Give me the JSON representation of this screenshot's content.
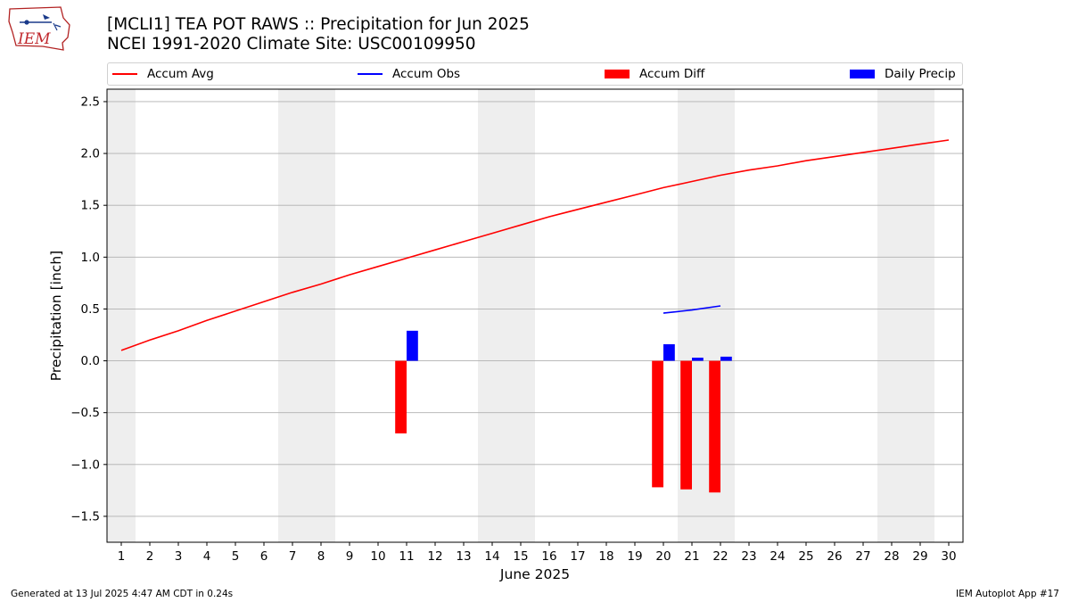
{
  "header": {
    "logo_text": "IEM",
    "title": "[MCLI1] TEA POT RAWS :: Precipitation for Jun 2025",
    "subtitle": "NCEI 1991-2020 Climate Site: USC00109950"
  },
  "legend": [
    {
      "label": "Accum Avg",
      "color": "#ff0000",
      "kind": "line"
    },
    {
      "label": "Accum Obs",
      "color": "#0000ff",
      "kind": "line"
    },
    {
      "label": "Accum Diff",
      "color": "#ff0000",
      "kind": "box"
    },
    {
      "label": "Daily Precip",
      "color": "#0000ff",
      "kind": "box"
    }
  ],
  "chart_data": {
    "type": "bar",
    "xlabel": "June 2025",
    "ylabel": "Precipitation [inch]",
    "xlim": [
      0.5,
      30.5
    ],
    "ylim": [
      -1.75,
      2.62
    ],
    "yticks": [
      -1.5,
      -1.0,
      -0.5,
      0.0,
      0.5,
      1.0,
      1.5,
      2.0,
      2.5
    ],
    "ytick_labels": [
      "−1.5",
      "−1.0",
      "−0.5",
      "0.0",
      "0.5",
      "1.0",
      "1.5",
      "2.0",
      "2.5"
    ],
    "xticks": [
      1,
      2,
      3,
      4,
      5,
      6,
      7,
      8,
      9,
      10,
      11,
      12,
      13,
      14,
      15,
      16,
      17,
      18,
      19,
      20,
      21,
      22,
      23,
      24,
      25,
      26,
      27,
      28,
      29,
      30
    ],
    "grid": "horizontal",
    "weekend_days": [
      1,
      7,
      8,
      14,
      15,
      21,
      22,
      28,
      29
    ],
    "series": [
      {
        "name": "Accum Avg",
        "type": "line",
        "color": "#ff0000",
        "x": [
          1,
          2,
          3,
          4,
          5,
          6,
          7,
          8,
          9,
          10,
          11,
          12,
          13,
          14,
          15,
          16,
          17,
          18,
          19,
          20,
          21,
          22,
          23,
          24,
          25,
          26,
          27,
          28,
          29,
          30
        ],
        "values": [
          0.1,
          0.2,
          0.29,
          0.39,
          0.48,
          0.57,
          0.66,
          0.74,
          0.83,
          0.91,
          0.99,
          1.07,
          1.15,
          1.23,
          1.31,
          1.39,
          1.46,
          1.53,
          1.6,
          1.67,
          1.73,
          1.79,
          1.84,
          1.88,
          1.93,
          1.97,
          2.01,
          2.05,
          2.09,
          2.13
        ]
      },
      {
        "name": "Accum Obs",
        "type": "line",
        "color": "#0000ff",
        "x": [
          20,
          21,
          22
        ],
        "values": [
          0.46,
          0.49,
          0.53
        ]
      },
      {
        "name": "Accum Diff",
        "type": "bar",
        "color": "#ff0000",
        "x": [
          11,
          20,
          21,
          22
        ],
        "values": [
          -0.7,
          -1.22,
          -1.24,
          -1.27
        ]
      },
      {
        "name": "Daily Precip",
        "type": "bar",
        "color": "#0000ff",
        "x": [
          11,
          20,
          21,
          22
        ],
        "values": [
          0.29,
          0.16,
          0.03,
          0.04
        ]
      }
    ]
  },
  "footer": {
    "left": "Generated at 13 Jul 2025 4:47 AM CDT in 0.24s",
    "right": "IEM Autoplot App #17"
  }
}
